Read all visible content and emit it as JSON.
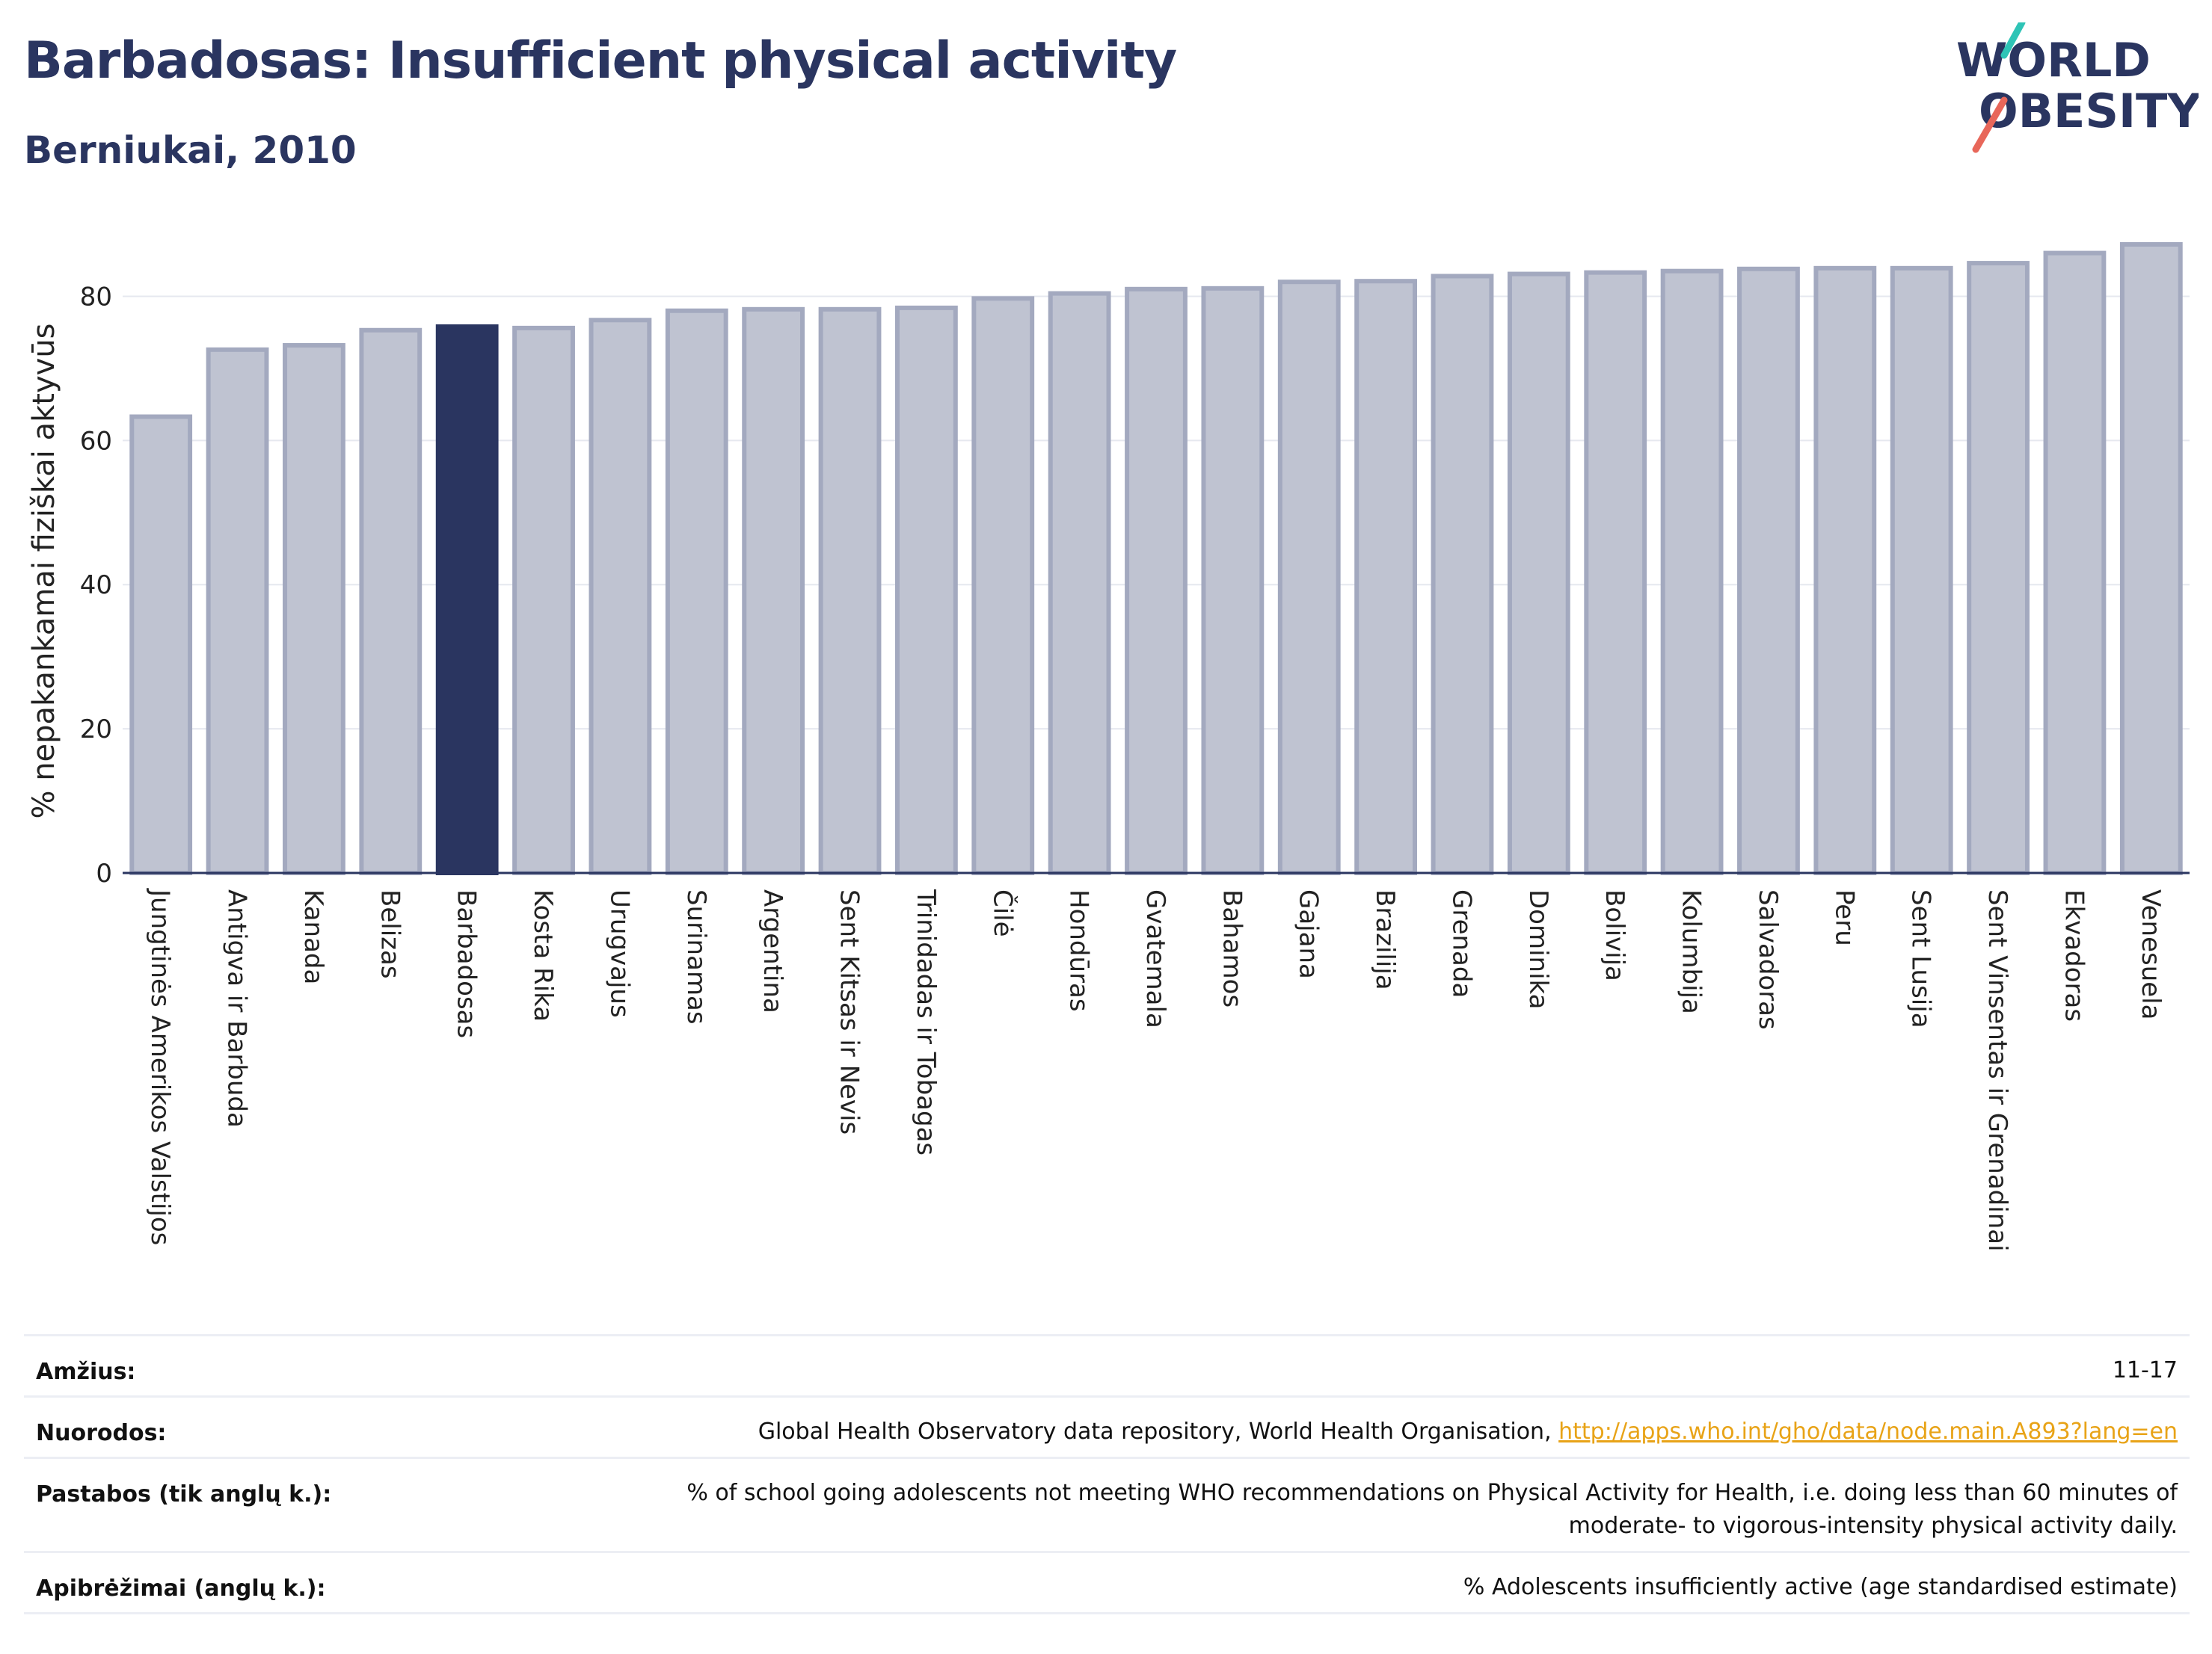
{
  "header": {
    "title": "Barbadosas: Insufficient physical activity",
    "subtitle": "Berniukai, 2010"
  },
  "logo": {
    "line1": "WORLD",
    "line2": "OBESITY",
    "colors": {
      "text": "#2a3560",
      "slash_teal": "#2ec4b6",
      "slash_red": "#e8675a"
    }
  },
  "chart_data": {
    "type": "bar",
    "ylabel": "% nepakankamai fiziškai aktyvūs",
    "xlabel": "",
    "ylim": [
      0,
      90
    ],
    "yticks": [
      0,
      20,
      40,
      60,
      80
    ],
    "grid": true,
    "highlight": "Barbadosas",
    "colors": {
      "bar": "#bfc3d1",
      "bar_edge": "#a3a9bf",
      "highlight": "#2a3560"
    },
    "categories": [
      "Jungtinės Amerikos Valstijos",
      "Antigva ir Barbuda",
      "Kanada",
      "Belizas",
      "Barbadosas",
      "Kosta Rika",
      "Urugvajus",
      "Surinamas",
      "Argentina",
      "Sent Kitsas ir Nevis",
      "Trinidadas ir Tobagas",
      "Čilė",
      "Hondūras",
      "Gvatemala",
      "Bahamos",
      "Gajana",
      "Brazilija",
      "Grenada",
      "Dominika",
      "Bolivija",
      "Kolumbija",
      "Salvadoras",
      "Peru",
      "Sent Lusija",
      "Sent Vinsentas ir Grenadinai",
      "Ekvadoras",
      "Venesuela"
    ],
    "values": [
      63.3,
      72.6,
      73.2,
      75.3,
      75.8,
      75.6,
      76.7,
      78.0,
      78.2,
      78.2,
      78.4,
      79.7,
      80.4,
      81.0,
      81.1,
      82.0,
      82.1,
      82.8,
      83.1,
      83.3,
      83.5,
      83.8,
      83.9,
      83.9,
      84.6,
      86.0,
      87.2
    ]
  },
  "meta": {
    "age_label": "Amžius:",
    "age_value": "11-17",
    "refs_label": "Nuorodos:",
    "refs_text": "Global Health Observatory data repository, World Health Organisation, ",
    "refs_link": "http://apps.who.int/gho/data/node.main.A893?lang=en",
    "notes_label": "Pastabos (tik anglų k.):",
    "notes_line1": "% of school going adolescents not meeting WHO recommendations on Physical Activity for Health, i.e. doing less than 60 minutes of",
    "notes_line2": "moderate- to vigorous-intensity physical activity daily.",
    "defs_label": "Apibrėžimai (anglų k.):",
    "defs_value": "% Adolescents insufficiently active (age standardised estimate)"
  }
}
